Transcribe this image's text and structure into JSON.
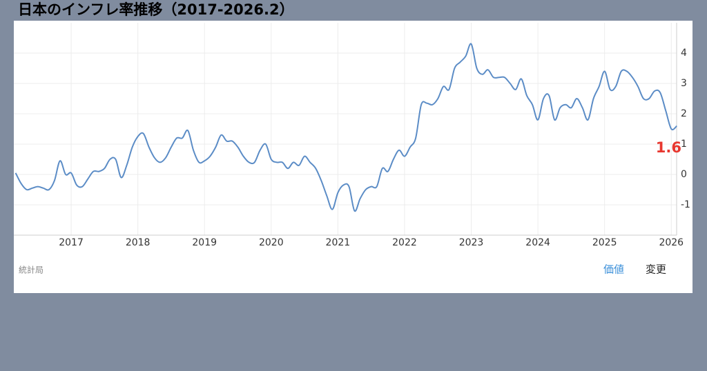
{
  "chart_data": {
    "type": "line",
    "title": "日本のインフレ率推移（2017-2026.2）",
    "source": "統計局",
    "controls": [
      "価値",
      "変更"
    ],
    "color": "#5b8cc6",
    "label_color": "#e8372f",
    "grid": true,
    "x": [
      2016.167,
      2016.25,
      2016.333,
      2016.417,
      2016.5,
      2016.583,
      2016.667,
      2016.75,
      2016.833,
      2016.917,
      2017,
      2017.083,
      2017.167,
      2017.25,
      2017.333,
      2017.417,
      2017.5,
      2017.583,
      2017.667,
      2017.75,
      2017.833,
      2017.917,
      2018,
      2018.083,
      2018.167,
      2018.25,
      2018.333,
      2018.417,
      2018.5,
      2018.583,
      2018.667,
      2018.75,
      2018.833,
      2018.917,
      2019,
      2019.083,
      2019.167,
      2019.25,
      2019.333,
      2019.417,
      2019.5,
      2019.583,
      2019.667,
      2019.75,
      2019.833,
      2019.917,
      2020,
      2020.083,
      2020.167,
      2020.25,
      2020.333,
      2020.417,
      2020.5,
      2020.583,
      2020.667,
      2020.75,
      2020.833,
      2020.917,
      2021,
      2021.083,
      2021.167,
      2021.25,
      2021.333,
      2021.417,
      2021.5,
      2021.583,
      2021.667,
      2021.75,
      2021.833,
      2021.917,
      2022,
      2022.083,
      2022.167,
      2022.25,
      2022.333,
      2022.417,
      2022.5,
      2022.583,
      2022.667,
      2022.75,
      2022.833,
      2022.917,
      2023,
      2023.083,
      2023.167,
      2023.25,
      2023.333,
      2023.417,
      2023.5,
      2023.583,
      2023.667,
      2023.75,
      2023.833,
      2023.917,
      2024,
      2024.083,
      2024.167,
      2024.25,
      2024.333,
      2024.417,
      2024.5,
      2024.583,
      2024.667,
      2024.75,
      2024.833,
      2024.917,
      2025,
      2025.083,
      2025.167,
      2025.25,
      2025.333,
      2025.417,
      2025.5,
      2025.583,
      2025.667,
      2025.75,
      2025.833,
      2025.917,
      2026,
      2026.083
    ],
    "values": [
      0.05,
      -0.3,
      -0.5,
      -0.45,
      -0.4,
      -0.45,
      -0.5,
      -0.2,
      0.45,
      0.0,
      0.05,
      -0.35,
      -0.4,
      -0.15,
      0.1,
      0.1,
      0.2,
      0.5,
      0.5,
      -0.1,
      0.3,
      0.9,
      1.25,
      1.35,
      0.9,
      0.55,
      0.4,
      0.55,
      0.9,
      1.2,
      1.2,
      1.45,
      0.8,
      0.4,
      0.45,
      0.6,
      0.9,
      1.3,
      1.1,
      1.1,
      0.9,
      0.6,
      0.4,
      0.4,
      0.8,
      1.0,
      0.5,
      0.4,
      0.4,
      0.2,
      0.4,
      0.3,
      0.6,
      0.4,
      0.2,
      -0.2,
      -0.7,
      -1.15,
      -0.6,
      -0.35,
      -0.4,
      -1.2,
      -0.8,
      -0.5,
      -0.4,
      -0.4,
      0.2,
      0.1,
      0.5,
      0.8,
      0.6,
      0.9,
      1.2,
      2.3,
      2.35,
      2.3,
      2.5,
      2.9,
      2.8,
      3.5,
      3.7,
      3.9,
      4.3,
      3.5,
      3.3,
      3.45,
      3.2,
      3.2,
      3.2,
      3.0,
      2.8,
      3.15,
      2.6,
      2.3,
      1.8,
      2.5,
      2.6,
      1.8,
      2.2,
      2.3,
      2.2,
      2.5,
      2.2,
      1.8,
      2.5,
      2.9,
      3.4,
      2.8,
      2.9,
      3.4,
      3.4,
      3.2,
      2.9,
      2.5,
      2.5,
      2.75,
      2.7,
      2.1,
      1.5,
      1.6
    ],
    "xlim": [
      2016.14,
      2026.08
    ],
    "xticks": [
      2017,
      2018,
      2019,
      2020,
      2021,
      2022,
      2023,
      2024,
      2025,
      2026
    ],
    "ylim": [
      -2,
      5
    ],
    "yticks": [
      -1,
      0,
      1,
      2,
      3,
      4
    ]
  }
}
